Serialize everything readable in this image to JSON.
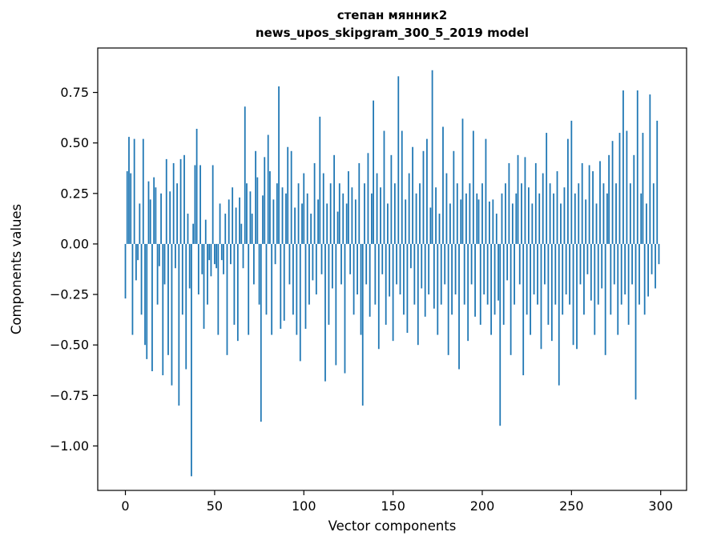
{
  "title": {
    "line1": "степан мянник2",
    "line2": "news_upos_skipgram_300_5_2019 model"
  },
  "chart_data": {
    "type": "bar",
    "title": "степан мянник2\nnews_upos_skipgram_300_5_2019 model",
    "xlabel": "Vector components",
    "ylabel": "Components values",
    "xlim": [
      -15.5,
      314.5
    ],
    "ylim": [
      -1.22,
      0.97
    ],
    "x_ticks": [
      0,
      50,
      100,
      150,
      200,
      250,
      300
    ],
    "y_ticks": [
      -1.0,
      -0.75,
      -0.5,
      -0.25,
      0.0,
      0.25,
      0.5,
      0.75
    ],
    "grid": false,
    "legend": "none",
    "bar_color": "#1f77b4",
    "values": [
      -0.27,
      0.36,
      0.53,
      0.35,
      -0.45,
      0.52,
      -0.18,
      -0.08,
      0.2,
      -0.35,
      0.52,
      -0.5,
      -0.57,
      0.31,
      0.22,
      -0.63,
      0.33,
      0.28,
      -0.3,
      -0.11,
      0.25,
      -0.65,
      -0.2,
      0.42,
      -0.55,
      0.26,
      -0.7,
      0.4,
      -0.12,
      0.3,
      -0.8,
      0.42,
      -0.35,
      0.44,
      -0.62,
      0.15,
      -0.22,
      -1.15,
      0.1,
      0.39,
      0.57,
      -0.25,
      0.39,
      -0.15,
      -0.42,
      0.12,
      -0.3,
      -0.08,
      -0.16,
      0.39,
      -0.1,
      -0.12,
      -0.45,
      0.2,
      -0.08,
      -0.15,
      0.15,
      -0.55,
      0.22,
      -0.1,
      0.28,
      -0.4,
      0.18,
      -0.48,
      0.23,
      0.1,
      -0.12,
      0.68,
      0.3,
      -0.45,
      0.26,
      0.15,
      -0.2,
      0.46,
      0.33,
      -0.3,
      -0.88,
      0.24,
      0.43,
      -0.35,
      0.54,
      0.36,
      -0.45,
      0.22,
      -0.1,
      0.3,
      0.78,
      -0.42,
      0.28,
      -0.38,
      0.25,
      0.48,
      -0.2,
      0.46,
      -0.35,
      0.18,
      -0.45,
      0.3,
      -0.58,
      0.2,
      0.35,
      -0.42,
      0.25,
      -0.3,
      0.15,
      -0.18,
      0.4,
      -0.25,
      0.22,
      0.63,
      -0.15,
      0.35,
      -0.68,
      0.2,
      -0.4,
      0.3,
      -0.22,
      0.44,
      -0.6,
      0.16,
      0.3,
      -0.2,
      0.25,
      -0.64,
      0.2,
      0.36,
      -0.15,
      0.28,
      -0.35,
      0.22,
      -0.25,
      0.4,
      -0.45,
      -0.8,
      0.3,
      -0.2,
      0.45,
      -0.36,
      0.25,
      0.71,
      -0.3,
      0.35,
      -0.52,
      0.28,
      -0.15,
      0.56,
      -0.4,
      0.2,
      -0.26,
      0.44,
      -0.48,
      0.3,
      -0.2,
      0.83,
      -0.25,
      0.56,
      -0.35,
      0.22,
      -0.44,
      0.35,
      -0.12,
      0.48,
      -0.3,
      0.25,
      -0.5,
      0.3,
      -0.22,
      0.46,
      -0.36,
      0.52,
      -0.25,
      0.18,
      0.86,
      -0.32,
      0.28,
      -0.45,
      0.15,
      -0.3,
      0.58,
      -0.2,
      0.35,
      -0.55,
      0.2,
      -0.35,
      0.46,
      -0.25,
      0.3,
      -0.62,
      0.22,
      0.62,
      -0.3,
      0.25,
      -0.48,
      0.3,
      -0.2,
      0.56,
      -0.36,
      0.25,
      0.22,
      -0.4,
      0.3,
      -0.25,
      0.52,
      -0.3,
      0.21,
      -0.45,
      0.22,
      -0.35,
      0.15,
      -0.28,
      -0.9,
      0.25,
      -0.4,
      0.3,
      -0.18,
      0.4,
      -0.55,
      0.2,
      -0.3,
      0.25,
      0.44,
      -0.2,
      0.3,
      -0.65,
      0.43,
      -0.35,
      0.28,
      -0.45,
      0.2,
      -0.25,
      0.4,
      -0.3,
      0.25,
      -0.52,
      0.35,
      -0.2,
      0.55,
      -0.4,
      0.3,
      -0.48,
      0.25,
      -0.3,
      0.36,
      -0.7,
      0.2,
      -0.35,
      0.28,
      -0.25,
      0.52,
      -0.3,
      0.61,
      -0.5,
      0.25,
      -0.52,
      0.3,
      -0.2,
      0.4,
      -0.35,
      0.22,
      -0.15,
      0.39,
      -0.28,
      0.36,
      -0.45,
      0.2,
      -0.3,
      0.41,
      -0.22,
      0.3,
      -0.55,
      0.25,
      0.44,
      -0.35,
      0.51,
      -0.2,
      0.3,
      -0.45,
      0.55,
      -0.3,
      0.76,
      -0.25,
      0.56,
      -0.4,
      0.3,
      -0.2,
      0.44,
      -0.77,
      0.76,
      -0.3,
      0.25,
      0.55,
      -0.35,
      0.2,
      -0.26,
      0.74,
      -0.15,
      0.3,
      -0.22,
      0.61,
      -0.1
    ]
  }
}
